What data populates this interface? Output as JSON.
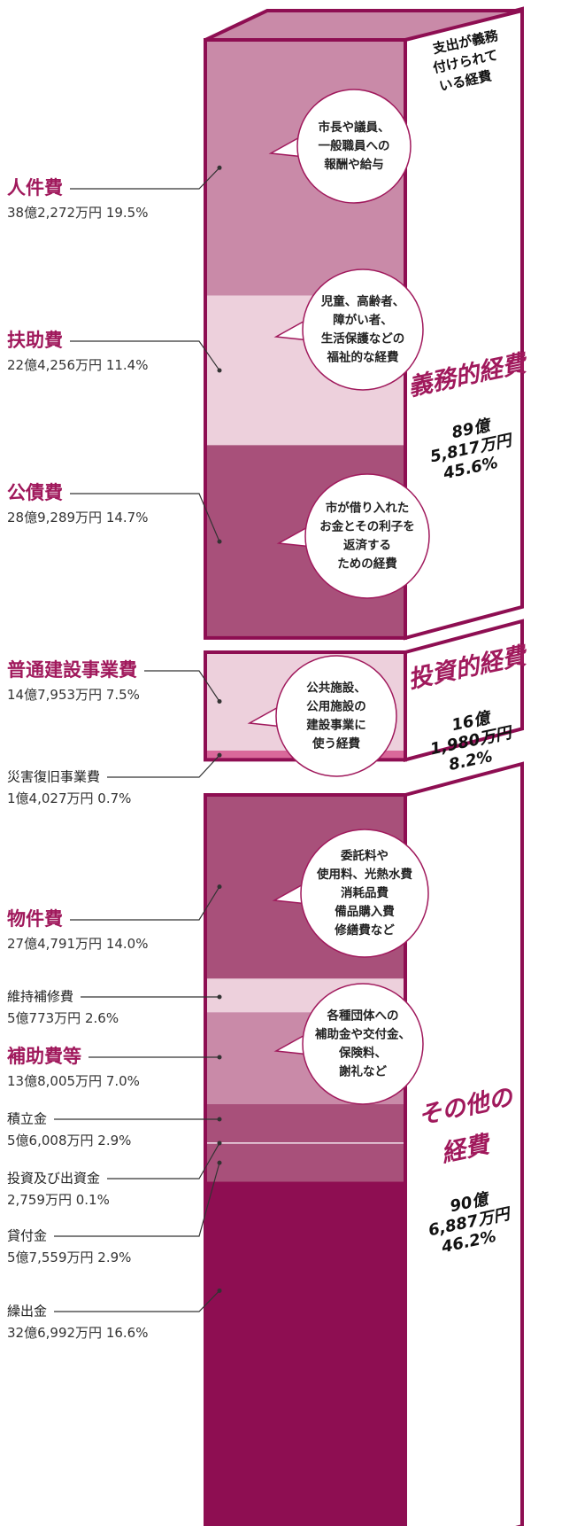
{
  "header": {
    "note_lines": [
      "支出が義務",
      "付けられて",
      "いる経費"
    ]
  },
  "groups": [
    {
      "name_lines": [
        "義務的経費"
      ],
      "amount_lines": [
        "89億",
        "5,817万円"
      ],
      "percent_label": "45.6%"
    },
    {
      "name_lines": [
        "投資的経費"
      ],
      "amount_lines": [
        "16億",
        "1,980万円"
      ],
      "percent_label": "8.2%"
    },
    {
      "name_lines": [
        "その他の",
        "経費"
      ],
      "amount_lines": [
        "90億",
        "6,887万円"
      ],
      "percent_label": "46.2%"
    }
  ],
  "items": [
    {
      "name": "人件費",
      "amount": "38億2,272万円",
      "percent_label": "19.5%",
      "percent": 19.5,
      "major": true,
      "color": "#c98aa8"
    },
    {
      "name": "扶助費",
      "amount": "22億4,256万円",
      "percent_label": "11.4%",
      "percent": 11.4,
      "major": true,
      "color": "#edd0dc"
    },
    {
      "name": "公債費",
      "amount": "28億9,289万円",
      "percent_label": "14.7%",
      "percent": 14.7,
      "major": true,
      "color": "#a8507a"
    },
    {
      "name": "普通建設事業費",
      "amount": "14億7,953万円",
      "percent_label": "7.5%",
      "percent": 7.5,
      "major": true,
      "color": "#edd0dc"
    },
    {
      "name": "災害復旧事業費",
      "amount": "1億4,027万円",
      "percent_label": "0.7%",
      "percent": 0.7,
      "major": false,
      "color": "#d9689a"
    },
    {
      "name": "物件費",
      "amount": "27億4,791万円",
      "percent_label": "14.0%",
      "percent": 14.0,
      "major": true,
      "color": "#a8507a"
    },
    {
      "name": "維持補修費",
      "amount": "5億773万円",
      "percent_label": "2.6%",
      "percent": 2.6,
      "major": false,
      "color": "#edd0dc"
    },
    {
      "name": "補助費等",
      "amount": "13億8,005万円",
      "percent_label": "7.0%",
      "percent": 7.0,
      "major": true,
      "color": "#c98aa8"
    },
    {
      "name": "積立金",
      "amount": "5億6,008万円",
      "percent_label": "2.9%",
      "percent": 2.9,
      "major": false,
      "color": "#a8507a"
    },
    {
      "name": "投資及び出資金",
      "amount": "2,759万円",
      "percent_label": "0.1%",
      "percent": 0.1,
      "major": false,
      "color": "#ffffff"
    },
    {
      "name": "貸付金",
      "amount": "5億7,559万円",
      "percent_label": "2.9%",
      "percent": 2.9,
      "major": false,
      "color": "#a8507a"
    },
    {
      "name": "繰出金",
      "amount": "32億6,992万円",
      "percent_label": "16.6%",
      "percent": 16.6,
      "major": false,
      "color": "#8e0e52"
    }
  ],
  "bubbles": [
    {
      "lines": [
        "市長や議員、",
        "一般職員への",
        "報酬や給与"
      ]
    },
    {
      "lines": [
        "児童、高齢者、",
        "障がい者、",
        "生活保護などの",
        "福祉的な経費"
      ]
    },
    {
      "lines": [
        "市が借り入れた",
        "お金とその利子を",
        "返済する",
        "ための経費"
      ]
    },
    {
      "lines": [
        "公共施設、",
        "公用施設の",
        "建設事業に",
        "使う経費"
      ]
    },
    {
      "lines": [
        "委託料や",
        "使用料、光熱水費",
        "消耗品費",
        "備品購入費",
        "修繕費など"
      ]
    },
    {
      "lines": [
        "各種団体への",
        "補助金や交付金、",
        "保険料、",
        "謝礼など"
      ]
    }
  ]
}
